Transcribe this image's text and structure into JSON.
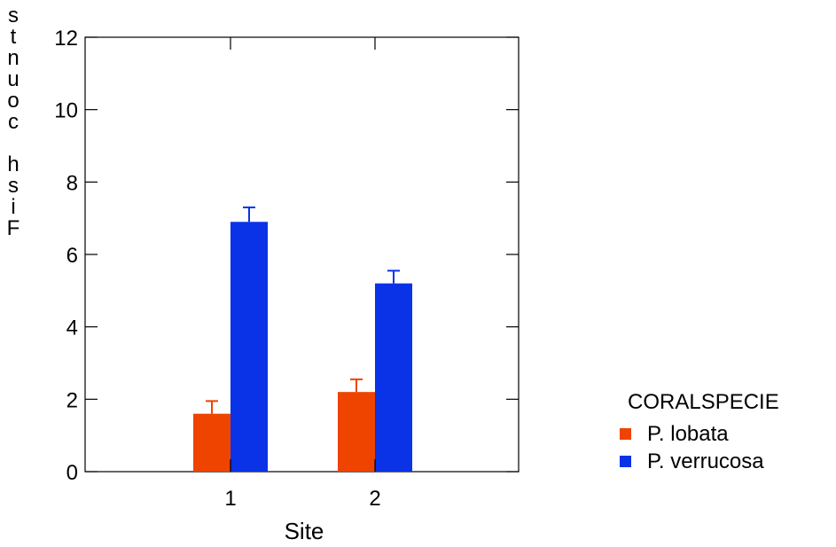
{
  "chart_data": {
    "type": "bar",
    "xlabel": "Site",
    "ylabel": "Fish counts",
    "ylabel_rendered": "stnuoc hsiF",
    "categories": [
      "1",
      "2"
    ],
    "ylim": [
      0,
      12
    ],
    "yticks": [
      "0",
      "2",
      "4",
      "6",
      "8",
      "10",
      "12"
    ],
    "legend": {
      "title": "CORALSPECIE",
      "placement": "right"
    },
    "series": [
      {
        "name": "P. lobata",
        "color": "#ee4400",
        "values": [
          1.6,
          2.2
        ],
        "errors": [
          0.35,
          0.35
        ]
      },
      {
        "name": "P. verrucosa",
        "color": "#0a32e6",
        "values": [
          6.9,
          5.2
        ],
        "errors": [
          0.4,
          0.35
        ]
      }
    ]
  }
}
